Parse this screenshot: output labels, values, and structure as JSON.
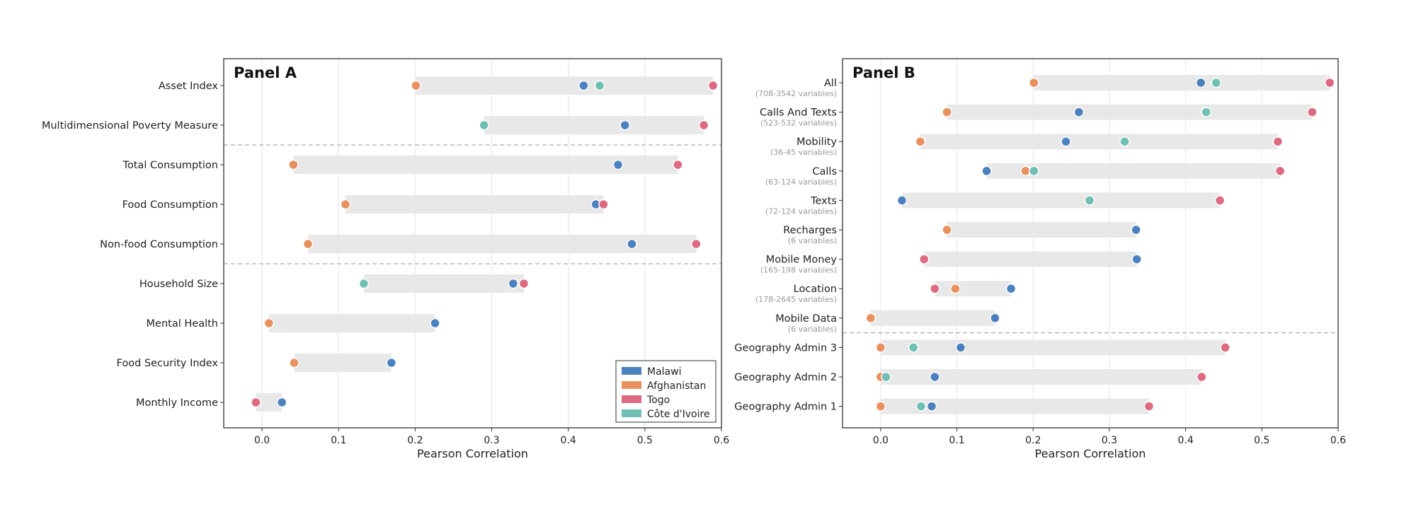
{
  "chart_data": [
    {
      "type": "scatter",
      "title": "Panel A",
      "xlabel": "Pearson Correlation",
      "ylabel": "",
      "xlim": [
        -0.05,
        0.6
      ],
      "xticks": [
        "0.0",
        "0.1",
        "0.2",
        "0.3",
        "0.4",
        "0.5",
        "0.6"
      ],
      "grid": "vertical",
      "legend_position": "bottom-right",
      "categories": [
        {
          "label": "Asset Index",
          "sublabel": ""
        },
        {
          "label": "Multidimensional Poverty Measure",
          "sublabel": ""
        },
        {
          "label": "Total Consumption",
          "sublabel": ""
        },
        {
          "label": "Food Consumption",
          "sublabel": ""
        },
        {
          "label": "Non-food Consumption",
          "sublabel": ""
        },
        {
          "label": "Household Size",
          "sublabel": ""
        },
        {
          "label": "Mental Health",
          "sublabel": ""
        },
        {
          "label": "Food Security Index",
          "sublabel": ""
        },
        {
          "label": "Monthly Income",
          "sublabel": ""
        }
      ],
      "group_separators_after": [
        1,
        4
      ],
      "series": [
        {
          "name": "Malawi",
          "color": "#4c81bf",
          "values": [
            0.42,
            0.474,
            0.465,
            0.436,
            0.483,
            0.328,
            0.226,
            0.169,
            0.026
          ]
        },
        {
          "name": "Afghanistan",
          "color": "#e8905e",
          "values": [
            0.201,
            null,
            0.041,
            0.109,
            0.06,
            null,
            0.009,
            0.042,
            null
          ]
        },
        {
          "name": "Togo",
          "color": "#dd6a80",
          "values": [
            0.589,
            0.577,
            0.543,
            0.446,
            0.567,
            0.342,
            null,
            null,
            -0.008
          ]
        },
        {
          "name": "Côte d'Ivoire",
          "color": "#6fbfb2",
          "values": [
            0.441,
            0.29,
            null,
            null,
            null,
            0.133,
            null,
            null,
            null
          ]
        }
      ]
    },
    {
      "type": "scatter",
      "title": "Panel B",
      "xlabel": "Pearson Correlation",
      "ylabel": "",
      "xlim": [
        -0.05,
        0.6
      ],
      "xticks": [
        "0.0",
        "0.1",
        "0.2",
        "0.3",
        "0.4",
        "0.5",
        "0.6"
      ],
      "grid": "vertical",
      "categories": [
        {
          "label": "All",
          "sublabel": "(708-3542 variables)"
        },
        {
          "label": "Calls And Texts",
          "sublabel": "(523-532 variables)"
        },
        {
          "label": "Mobility",
          "sublabel": "(36-45 variables)"
        },
        {
          "label": "Calls",
          "sublabel": "(63-124 variables)"
        },
        {
          "label": "Texts",
          "sublabel": "(72-124 variables)"
        },
        {
          "label": "Recharges",
          "sublabel": "(6 variables)"
        },
        {
          "label": "Mobile Money",
          "sublabel": "(165-198 variables)"
        },
        {
          "label": "Location",
          "sublabel": "(178-2645 variables)"
        },
        {
          "label": "Mobile Data",
          "sublabel": "(6 variables)"
        },
        {
          "label": "Geography Admin 3",
          "sublabel": ""
        },
        {
          "label": "Geography Admin 2",
          "sublabel": ""
        },
        {
          "label": "Geography Admin 1",
          "sublabel": ""
        }
      ],
      "group_separators_after": [
        8
      ],
      "series": [
        {
          "name": "Malawi",
          "color": "#4c81bf",
          "values": [
            0.42,
            0.26,
            0.243,
            0.139,
            0.028,
            0.335,
            0.336,
            0.171,
            0.15,
            0.105,
            0.071,
            0.067
          ]
        },
        {
          "name": "Afghanistan",
          "color": "#e8905e",
          "values": [
            0.201,
            0.087,
            0.052,
            0.19,
            null,
            0.087,
            null,
            0.098,
            -0.013,
            0.0,
            0.0,
            0.0
          ]
        },
        {
          "name": "Togo",
          "color": "#dd6a80",
          "values": [
            0.589,
            0.566,
            0.521,
            0.524,
            0.445,
            null,
            0.057,
            0.071,
            null,
            0.452,
            0.421,
            0.352
          ]
        },
        {
          "name": "Côte d'Ivoire",
          "color": "#6fbfb2",
          "values": [
            0.44,
            0.427,
            0.32,
            0.201,
            0.274,
            null,
            null,
            null,
            null,
            0.043,
            0.007,
            0.053
          ]
        }
      ]
    }
  ]
}
